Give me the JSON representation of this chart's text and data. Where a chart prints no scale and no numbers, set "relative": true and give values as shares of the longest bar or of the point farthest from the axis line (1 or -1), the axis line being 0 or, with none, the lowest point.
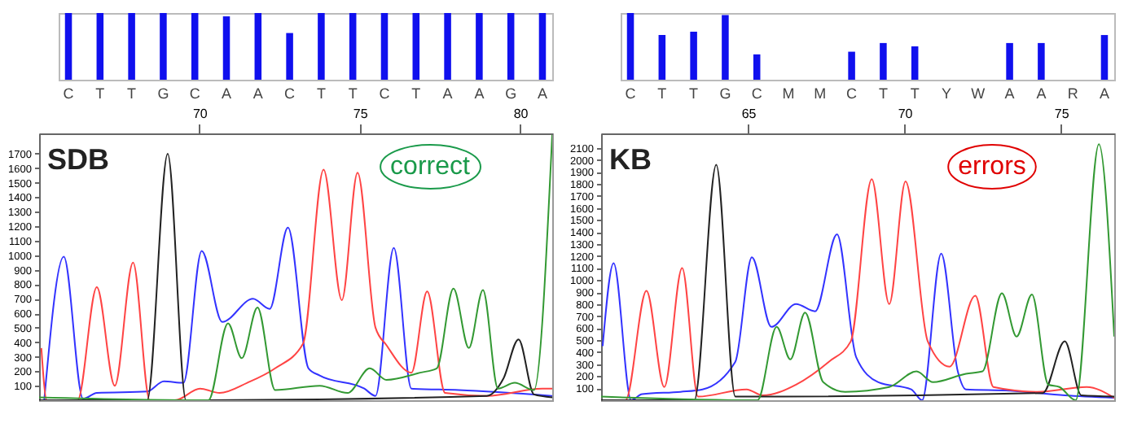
{
  "chart_data": [
    {
      "type": "bar",
      "relative": true,
      "color": "#1010ee",
      "categories": [
        "C",
        "T",
        "T",
        "G",
        "C",
        "A",
        "A",
        "C",
        "T",
        "T",
        "C",
        "T",
        "A",
        "A",
        "G",
        "A"
      ],
      "values": [
        1,
        1,
        1,
        1,
        1,
        0.95,
        1,
        0.7,
        1,
        1,
        1,
        1,
        1,
        1,
        1,
        1
      ]
    },
    {
      "type": "line",
      "title": "SDB",
      "annotations": [
        "correct"
      ],
      "xlim": [
        65,
        81
      ],
      "xticks": [
        70,
        75,
        80
      ],
      "ylim": [
        0,
        1840
      ],
      "yticks": [
        100,
        200,
        300,
        400,
        500,
        600,
        700,
        800,
        900,
        1000,
        1100,
        1200,
        1300,
        1400,
        1500,
        1600,
        1700
      ],
      "grid": false,
      "series": [
        {
          "color": "#3333ff",
          "x": [
            65.16,
            65.77,
            66.37,
            66.8,
            68.37,
            68.89,
            69.5,
            70.07,
            70.71,
            71.67,
            72.19,
            72.76,
            73.4,
            73.75,
            75.14,
            75.49,
            76.06,
            76.61,
            78.09,
            81
          ],
          "values": [
            0,
            990,
            10,
            50,
            60,
            130,
            120,
            1030,
            540,
            700,
            630,
            1190,
            220,
            170,
            80,
            30,
            1050,
            80,
            70,
            30
          ]
        },
        {
          "color": "#ff4444",
          "x": [
            65.07,
            65.24,
            66.2,
            66.8,
            67.36,
            67.93,
            68.45,
            69.24,
            70.02,
            70.63,
            71.49,
            72.36,
            73.23,
            73.87,
            74.44,
            74.93,
            75.49,
            75.83,
            76.61,
            77.1,
            77.66,
            78.96,
            80.69,
            81
          ],
          "values": [
            360,
            0,
            0,
            780,
            100,
            950,
            0,
            0,
            80,
            50,
            120,
            220,
            390,
            1590,
            690,
            1570,
            500,
            380,
            190,
            750,
            50,
            30,
            80,
            80
          ]
        },
        {
          "color": "#222222",
          "x": [
            65,
            68.37,
            69.01,
            69.58,
            78.96,
            79.48,
            79.95,
            80.43,
            81
          ],
          "values": [
            0,
            0,
            1700,
            0,
            30,
            150,
            420,
            40,
            20
          ]
        },
        {
          "color": "#339933",
          "x": [
            65,
            70.28,
            70.89,
            71.32,
            71.81,
            72.36,
            73.75,
            74.62,
            75.31,
            75.83,
            76.88,
            77.4,
            77.92,
            78.4,
            78.84,
            79.31,
            79.83,
            80.43,
            81
          ],
          "values": [
            20,
            0,
            530,
            290,
            640,
            70,
            100,
            50,
            220,
            140,
            190,
            220,
            770,
            360,
            760,
            80,
            120,
            70,
            1830
          ]
        }
      ]
    },
    {
      "type": "bar",
      "relative": true,
      "color": "#1010ee",
      "categories": [
        "C",
        "T",
        "T",
        "G",
        "C",
        "M",
        "M",
        "C",
        "T",
        "T",
        "Y",
        "W",
        "A",
        "A",
        "R",
        "A"
      ],
      "values": [
        1,
        0.67,
        0.72,
        0.97,
        0.38,
        null,
        null,
        0.42,
        0.55,
        0.5,
        null,
        null,
        0.55,
        0.55,
        null,
        0.67
      ]
    },
    {
      "type": "line",
      "title": "KB",
      "annotations": [
        "errors"
      ],
      "xlim": [
        60.3,
        76.7
      ],
      "xticks": [
        65,
        70,
        75
      ],
      "ylim": [
        0,
        2220
      ],
      "yticks": [
        100,
        200,
        300,
        400,
        500,
        600,
        700,
        800,
        900,
        1000,
        1100,
        1200,
        1300,
        1400,
        1500,
        1600,
        1700,
        1800,
        1900,
        2000,
        2100
      ],
      "grid": false,
      "series": [
        {
          "color": "#3333ff",
          "x": [
            60.35,
            60.7,
            61.26,
            61.61,
            62.84,
            63.54,
            64.59,
            65.12,
            65.74,
            66.53,
            67.14,
            67.84,
            68.45,
            69.16,
            70.21,
            70.56,
            71.17,
            71.7,
            71.96,
            73.37,
            75.12,
            76.7
          ],
          "values": [
            450,
            1140,
            0,
            50,
            70,
            90,
            320,
            1190,
            610,
            800,
            740,
            1380,
            360,
            150,
            90,
            0,
            1220,
            240,
            90,
            80,
            40,
            20
          ]
        },
        {
          "color": "#ff4444",
          "x": [
            60.38,
            61.08,
            61.75,
            62.32,
            62.89,
            63.4,
            64.95,
            65.47,
            66.53,
            67.58,
            68.28,
            68.95,
            69.51,
            70.03,
            70.74,
            71.44,
            72.26,
            72.84,
            74.24,
            75.82,
            76.7
          ],
          "values": [
            0,
            0,
            910,
            110,
            1100,
            30,
            90,
            40,
            130,
            320,
            490,
            1840,
            800,
            1820,
            490,
            280,
            870,
            110,
            70,
            110,
            20
          ]
        },
        {
          "color": "#222222",
          "x": [
            60.3,
            63.28,
            63.98,
            64.59,
            74.42,
            75.12,
            75.65,
            76.7
          ],
          "values": [
            0,
            0,
            1960,
            30,
            60,
            490,
            40,
            30
          ]
        },
        {
          "color": "#339933",
          "x": [
            60.3,
            65.3,
            65.91,
            66.35,
            66.82,
            67.4,
            68.1,
            69.51,
            70.38,
            70.91,
            71.96,
            72.49,
            73.11,
            73.58,
            74.07,
            74.59,
            74.95,
            75.47,
            76.21,
            76.7
          ],
          "values": [
            30,
            0,
            610,
            340,
            730,
            150,
            70,
            110,
            240,
            150,
            220,
            240,
            890,
            530,
            880,
            130,
            110,
            0,
            2130,
            530
          ]
        }
      ]
    }
  ]
}
